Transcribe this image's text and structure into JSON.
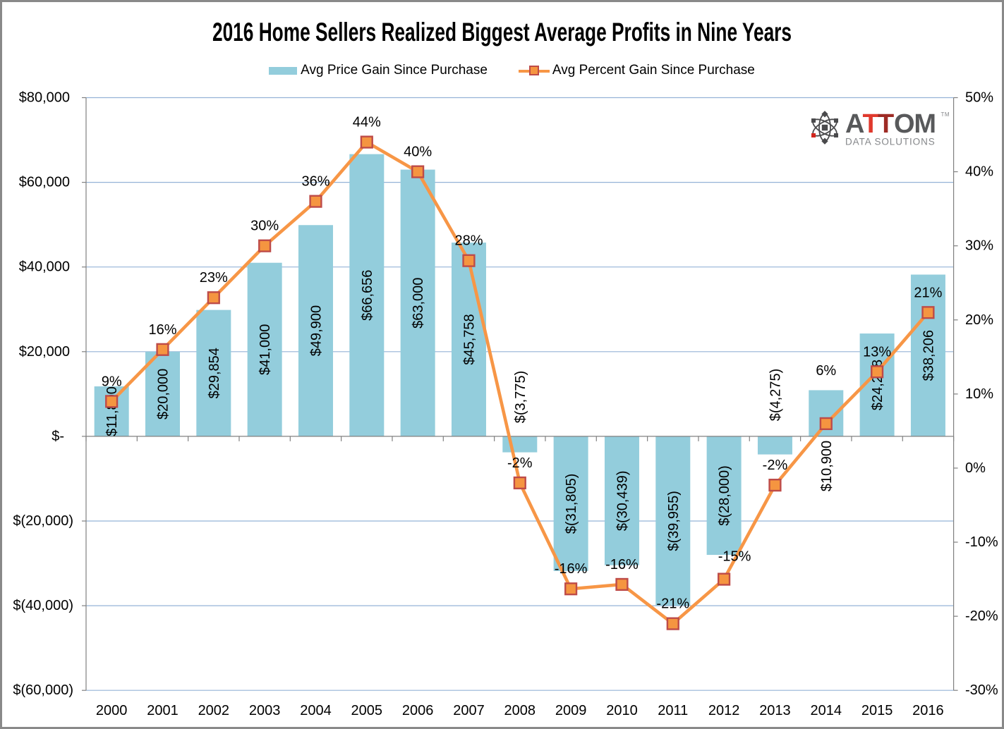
{
  "chart_data": {
    "type": "combo-bar-line",
    "title": "2016 Home Sellers Realized Biggest Average Profits in Nine Years",
    "categories": [
      "2000",
      "2001",
      "2002",
      "2003",
      "2004",
      "2005",
      "2006",
      "2007",
      "2008",
      "2009",
      "2010",
      "2011",
      "2012",
      "2013",
      "2014",
      "2015",
      "2016"
    ],
    "series": [
      {
        "name": "Avg Price Gain Since Purchase",
        "type": "bar",
        "color": "#93CDDC",
        "values": [
          11800,
          20000,
          29854,
          41000,
          49900,
          66656,
          63000,
          45758,
          -3775,
          -31805,
          -30439,
          -39955,
          -28000,
          -4275,
          10900,
          24288,
          38206
        ],
        "labels": [
          "$11,800",
          "$20,000",
          "$29,854",
          "$41,000",
          "$49,900",
          "$66,656",
          "$63,000",
          "$45,758",
          "$(3,775)",
          "$(31,805)",
          "$(30,439)",
          "$(39,955)",
          "$(28,000)",
          "$(4,275)",
          "$10,900",
          "$24,288",
          "$38,206"
        ],
        "label_center_overrides": {
          "8": 563,
          "13": 560,
          "14": 661
        }
      },
      {
        "name": "Avg Percent Gain Since Purchase",
        "type": "line",
        "color": "#F79646",
        "marker_fill": "#F59540",
        "marker_border": "#BE4B48",
        "values": [
          9,
          16,
          23,
          30,
          36,
          44,
          40,
          28,
          -2,
          -16,
          -16,
          -21,
          -15,
          -2,
          6,
          13,
          21
        ],
        "plot_values": [
          9,
          16,
          23,
          30,
          36,
          44,
          40,
          28,
          -2,
          -16.3,
          -15.7,
          -21,
          -15,
          -2.3,
          6,
          13,
          21
        ],
        "labels": [
          "9%",
          "16%",
          "23%",
          "30%",
          "36%",
          "44%",
          "40%",
          "28%",
          "-2%",
          "-16%",
          "-16%",
          "-21%",
          "-15%",
          "-2%",
          "6%",
          "13%",
          "21%"
        ],
        "label_offset_overrides": {
          "12": [
            15,
            -4
          ],
          "14": [
            0,
            -47
          ]
        }
      }
    ],
    "axes": {
      "left": {
        "ticks": [
          "$80,000",
          "$60,000",
          "$40,000",
          "$20,000",
          "$-",
          "$(20,000)",
          "$(40,000)",
          "$(60,000)"
        ],
        "max": 80000,
        "min": -60000,
        "step": 20000
      },
      "right": {
        "ticks": [
          "50%",
          "40%",
          "30%",
          "20%",
          "10%",
          "0%",
          "-10%",
          "-20%",
          "-30%"
        ],
        "max": 50,
        "min": -30,
        "step": 10
      }
    },
    "legend_position": "top",
    "grid_color": "#95B3D7",
    "axis_color": "#808080",
    "text_color": "#000000"
  },
  "legend": {
    "bar_label": "Avg Price Gain Since Purchase",
    "line_label": "Avg Percent Gain Since Purchase"
  },
  "logo": {
    "brand_a": "A",
    "brand_t1": "T",
    "brand_t2": "T",
    "brand_om": "OM",
    "tm": "TM",
    "subtitle": "DATA SOLUTIONS",
    "gray": "#58595B",
    "sub_gray": "#85878A",
    "red_bright": "#E0392D",
    "red_dark": "#9E2B25",
    "icon_gray": "#4A4A4C",
    "icon_red": "#D3261D"
  }
}
